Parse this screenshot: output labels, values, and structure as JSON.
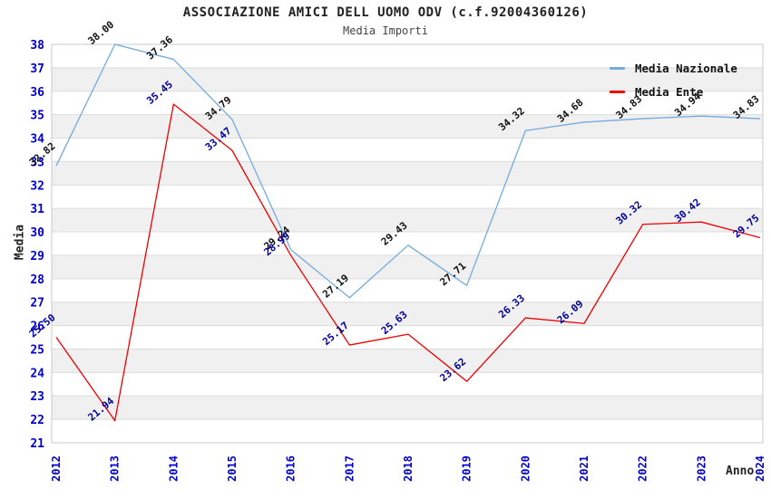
{
  "title": "ASSOCIAZIONE AMICI DELL UOMO ODV (c.f.92004360126)",
  "subtitle": "Media Importi",
  "colors": {
    "background": "#ffffff",
    "band_gray": "#f0f0f0",
    "gridline": "#dcdcdc",
    "plot_border": "#c8c8c8",
    "axis_tick_label": "#0000cc",
    "title_text": "#222222",
    "nazionale_line": "#74aade",
    "ente_line": "#ee0000",
    "nazionale_data_label": "#111111",
    "ente_data_label": "#000099"
  },
  "axis_titles": {
    "y": "Media",
    "x": "Anno"
  },
  "chart_data": {
    "type": "line",
    "title": "ASSOCIAZIONE AMICI DELL UOMO ODV (c.f.92004360126)",
    "subtitle": "Media Importi",
    "xlabel": "Anno",
    "ylabel": "Media",
    "x": [
      "2012",
      "2013",
      "2014",
      "2015",
      "2016",
      "2017",
      "2018",
      "2019",
      "2020",
      "2021",
      "2022",
      "2023",
      "2024"
    ],
    "y_ticks": [
      21,
      22,
      23,
      24,
      25,
      26,
      27,
      28,
      29,
      30,
      31,
      32,
      33,
      34,
      35,
      36,
      37,
      38
    ],
    "ylim": [
      21,
      38
    ],
    "grid": "horizontal alternating bands, one unit tall",
    "legend_position": "top-right inside plot",
    "series": [
      {
        "name": "Media Nazionale",
        "color": "#74aade",
        "label_color": "#111111",
        "values": [
          32.82,
          38.0,
          37.36,
          34.79,
          29.24,
          27.19,
          29.43,
          27.71,
          34.32,
          34.68,
          34.83,
          34.94,
          34.83
        ]
      },
      {
        "name": "Media Ente",
        "color": "#ee0000",
        "label_color": "#000099",
        "values": [
          25.5,
          21.94,
          35.45,
          33.47,
          28.99,
          25.17,
          25.63,
          23.62,
          26.33,
          26.09,
          30.32,
          30.42,
          29.75
        ]
      }
    ]
  }
}
